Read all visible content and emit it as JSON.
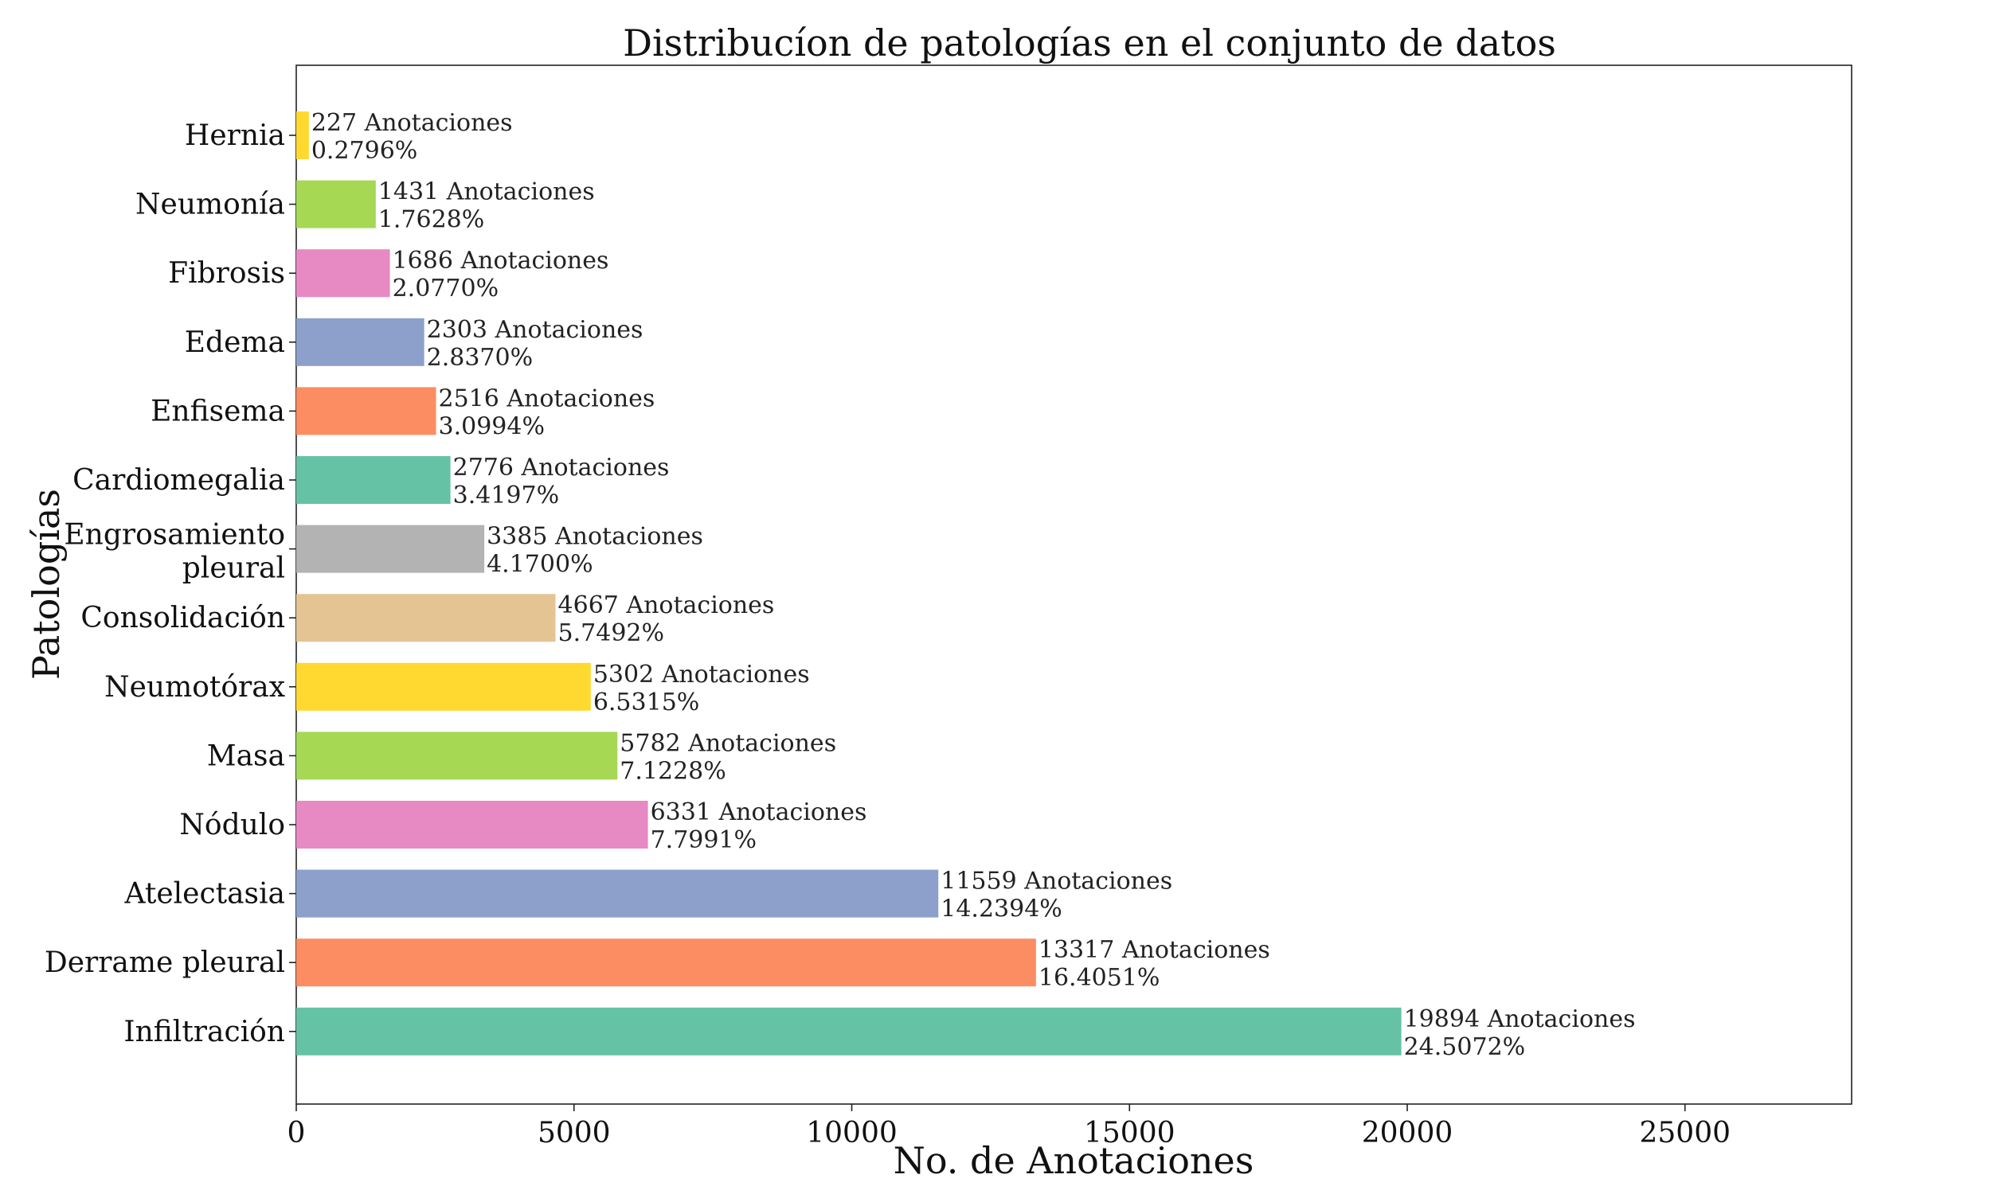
{
  "chart_data": {
    "type": "bar",
    "orientation": "horizontal",
    "title": "Distribucíon de patologías en el conjunto de datos",
    "xlabel": "No. de Anotaciones",
    "ylabel": "Patologías",
    "xlim": [
      0,
      28000
    ],
    "xticks": [
      "0",
      "5000",
      "10000",
      "15000",
      "20000",
      "25000"
    ],
    "grid": false,
    "bars": [
      {
        "category": "Hernia",
        "value": 227,
        "label_count": "227 Anotaciones",
        "label_pct": "0.2796%",
        "color": "#ffd92f"
      },
      {
        "category": "Neumonía",
        "value": 1431,
        "label_count": "1431 Anotaciones",
        "label_pct": "1.7628%",
        "color": "#a6d854"
      },
      {
        "category": "Fibrosis",
        "value": 1686,
        "label_count": "1686 Anotaciones",
        "label_pct": "2.0770%",
        "color": "#e78ac3"
      },
      {
        "category": "Edema",
        "value": 2303,
        "label_count": "2303 Anotaciones",
        "label_pct": "2.8370%",
        "color": "#8da0cb"
      },
      {
        "category": "Enfisema",
        "value": 2516,
        "label_count": "2516 Anotaciones",
        "label_pct": "3.0994%",
        "color": "#fc8d62"
      },
      {
        "category": "Cardiomegalia",
        "value": 2776,
        "label_count": "2776 Anotaciones",
        "label_pct": "3.4197%",
        "color": "#66c2a5"
      },
      {
        "category": "Engrosamiento pleural",
        "category_lines": [
          "Engrosamiento",
          "pleural"
        ],
        "value": 3385,
        "label_count": "3385 Anotaciones",
        "label_pct": "4.1700%",
        "color": "#b3b3b3"
      },
      {
        "category": "Consolidación",
        "value": 4667,
        "label_count": "4667 Anotaciones",
        "label_pct": "5.7492%",
        "color": "#e5c494"
      },
      {
        "category": "Neumotórax",
        "value": 5302,
        "label_count": "5302 Anotaciones",
        "label_pct": "6.5315%",
        "color": "#ffd92f"
      },
      {
        "category": "Masa",
        "value": 5782,
        "label_count": "5782 Anotaciones",
        "label_pct": "7.1228%",
        "color": "#a6d854"
      },
      {
        "category": "Nódulo",
        "value": 6331,
        "label_count": "6331 Anotaciones",
        "label_pct": "7.7991%",
        "color": "#e78ac3"
      },
      {
        "category": "Atelectasia",
        "value": 11559,
        "label_count": "11559 Anotaciones",
        "label_pct": "14.2394%",
        "color": "#8da0cb"
      },
      {
        "category": "Derrame pleural",
        "value": 13317,
        "label_count": "13317 Anotaciones",
        "label_pct": "16.4051%",
        "color": "#fc8d62"
      },
      {
        "category": "Infiltración",
        "value": 19894,
        "label_count": "19894 Anotaciones",
        "label_pct": "24.5072%",
        "color": "#66c2a5"
      }
    ]
  }
}
